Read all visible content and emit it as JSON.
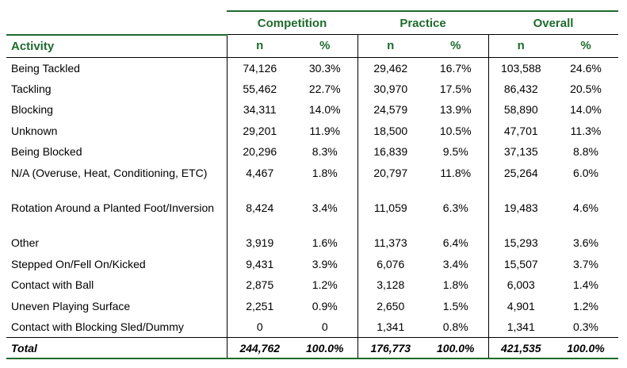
{
  "table": {
    "groups": [
      "Competition",
      "Practice",
      "Overall"
    ],
    "subheaders": [
      "Activity",
      "n",
      "%",
      "n",
      "%",
      "n",
      "%"
    ],
    "rows": [
      [
        "Being Tackled",
        "74,126",
        "30.3%",
        "29,462",
        "16.7%",
        "103,588",
        "24.6%"
      ],
      [
        "Tackling",
        "55,462",
        "22.7%",
        "30,970",
        "17.5%",
        "86,432",
        "20.5%"
      ],
      [
        "Blocking",
        "34,311",
        "14.0%",
        "24,579",
        "13.9%",
        "58,890",
        "14.0%"
      ],
      [
        "Unknown",
        "29,201",
        "11.9%",
        "18,500",
        "10.5%",
        "47,701",
        "11.3%"
      ],
      [
        "Being Blocked",
        "20,296",
        "8.3%",
        "16,839",
        "9.5%",
        "37,135",
        "8.8%"
      ],
      [
        "N/A (Overuse, Heat, Conditioning, ETC)",
        "4,467",
        "1.8%",
        "20,797",
        "11.8%",
        "25,264",
        "6.0%"
      ],
      [
        "Rotation Around a Planted Foot/Inversion",
        "8,424",
        "3.4%",
        "11,059",
        "6.3%",
        "19,483",
        "4.6%"
      ],
      [
        "Other",
        "3,919",
        "1.6%",
        "11,373",
        "6.4%",
        "15,293",
        "3.6%"
      ],
      [
        "Stepped On/Fell On/Kicked",
        "9,431",
        "3.9%",
        "6,076",
        "3.4%",
        "15,507",
        "3.7%"
      ],
      [
        "Contact with Ball",
        "2,875",
        "1.2%",
        "3,128",
        "1.8%",
        "6,003",
        "1.4%"
      ],
      [
        "Uneven Playing Surface",
        "2,251",
        "0.9%",
        "2,650",
        "1.5%",
        "4,901",
        "1.2%"
      ],
      [
        "Contact with Blocking Sled/Dummy",
        "0",
        "0",
        "1,341",
        "0.8%",
        "1,341",
        "0.3%"
      ]
    ],
    "total": [
      "Total",
      "244,762",
      "100.0%",
      "176,773",
      "100.0%",
      "421,535",
      "100.0%"
    ],
    "colors": {
      "header": "#1e6b2e"
    }
  }
}
